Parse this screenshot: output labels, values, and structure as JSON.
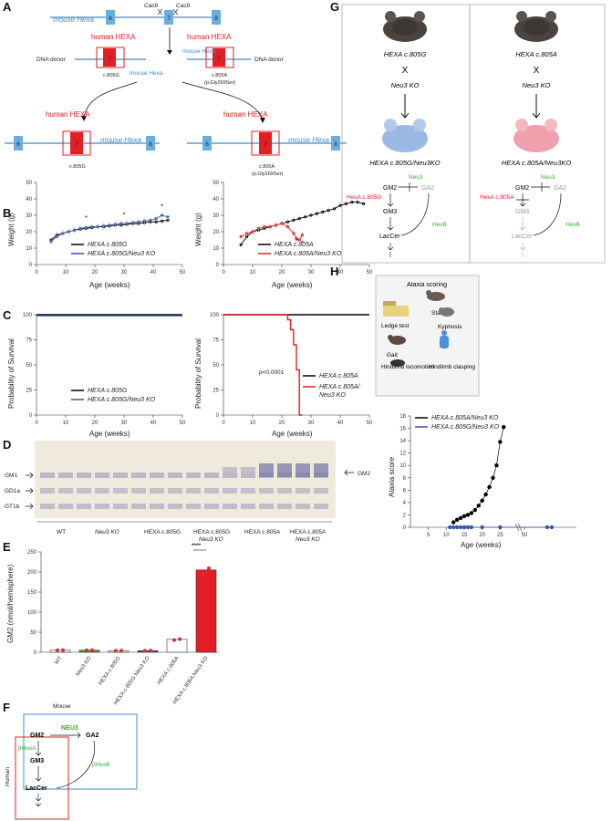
{
  "panels": {
    "A": "A",
    "B": "B",
    "C": "C",
    "D": "D",
    "E": "E",
    "F": "F",
    "G": "G",
    "H": "H"
  },
  "panelA": {
    "mouse_hexa_top": "mouse Hexa",
    "cas9_left": "Cas9",
    "cas9_right": "Cas9",
    "exon6": "6",
    "exon7": "7",
    "exon8": "8",
    "human_hexa": "human HEXA",
    "dna_donor": "DNA donor",
    "mouse_hexa_small": "mouse Hexa",
    "c805g": "c.805G",
    "c805a": "c.805A",
    "pgly": "(p.Gly269Ser)"
  },
  "panelB": {
    "ylabel": "Weight (g)",
    "xlabel": "Age (weeks)",
    "legend_left": [
      "HEXA c.805G",
      "HEXA c.805G/Neu3 KO"
    ],
    "legend_right": [
      "HEXA c.805A",
      "HEXA c.805A/Neu3 KO"
    ],
    "yticks": [
      "0",
      "10",
      "20",
      "30",
      "40",
      "50"
    ],
    "xticks": [
      "0",
      "10",
      "20",
      "30",
      "40",
      "50"
    ],
    "star": "*"
  },
  "panelC": {
    "ylabel": "Probability of Survival",
    "xlabel": "Age (weeks)",
    "yticks": [
      "0",
      "25",
      "50",
      "75",
      "100"
    ],
    "xticks": [
      "0",
      "10",
      "20",
      "30",
      "40",
      "50"
    ],
    "pvalue": "p<0.0001",
    "legend_left": [
      "HEXA c.805G",
      "HEXA c.805G/Neu3 KO"
    ],
    "legend_right": [
      "HEXA c.805A",
      "HEXA c.805A/",
      "Neu3 KO"
    ]
  },
  "panelD": {
    "bands_left": [
      "GM1",
      "GD1a",
      "GT1b"
    ],
    "band_right": "GM2",
    "lanes": [
      "WT",
      "Neu3 KO",
      "HEXA c.805G",
      "HEXA c.805G",
      "Neu3 KO",
      "HEXA c.805A",
      "HEXA c.805A",
      "Neu3 KO"
    ]
  },
  "panelE": {
    "ylabel": "GM2 (nmol/hemisphere)",
    "yticks": [
      "0",
      "50",
      "100",
      "150",
      "200",
      "250"
    ],
    "sig": "****",
    "categories": [
      "WT",
      "Neu3 KO",
      "HEXA c.805G",
      "HEXA c.805G Neu3 KO",
      "HEXA c.805A",
      "HEXA c.805A Neu3 KO"
    ]
  },
  "panelF": {
    "mouse": "Mouse",
    "human": "Human",
    "gm2": "GM2",
    "gm3": "GM3",
    "laccer": "LacCer",
    "ga2": "GA2",
    "neu3": "NEU3",
    "bhexa": "βHexA",
    "bhexb": "βHexB"
  },
  "panelG": {
    "left_top": "HEXA c.805G",
    "right_top": "HEXA c.805A",
    "cross": "X",
    "neu3ko": "Neu3 KO",
    "left_result": "HEXA c.805G/Neu3KO",
    "right_result": "HEXA c.805A/Neu3KO",
    "gm2": "GM2",
    "gm3": "GM3",
    "laccer": "LacCer",
    "ga2": "GA2",
    "neu3": "Neu3",
    "hexb": "HexB",
    "hexa_g": "HexA c.805G",
    "hexa_a": "HexA c.805A"
  },
  "panelH": {
    "title": "Ataxia scoring",
    "items": [
      "Stance",
      "Ledge test",
      "Kyphosis",
      "Gait",
      "Hindlimb locomotion",
      "Hindlimb clasping"
    ],
    "ylabel": "Ataxia score",
    "xlabel": "Age (weeks)",
    "legend": [
      "HEXA c.805A/Neu3 KO",
      "HEXA c.805G/Neu3 KO"
    ],
    "yticks": [
      "0",
      "2",
      "4",
      "6",
      "8",
      "10",
      "12",
      "14",
      "16",
      "18"
    ],
    "xticks": [
      "5",
      "10",
      "15",
      "20",
      "25",
      "50"
    ]
  },
  "chart_data": [
    {
      "type": "line",
      "title": "",
      "xlabel": "Age (weeks)",
      "ylabel": "Weight (g)",
      "xlim": [
        0,
        50
      ],
      "ylim": [
        0,
        50
      ],
      "series": [
        {
          "name": "HEXA c.805G",
          "color": "#000000",
          "x": [
            5,
            7,
            9,
            11,
            13,
            15,
            17,
            19,
            21,
            23,
            25,
            27,
            29,
            31,
            33,
            35,
            37,
            39,
            41,
            43,
            45
          ],
          "y": [
            15,
            18,
            19,
            20,
            21,
            21.5,
            22,
            22.5,
            23,
            23,
            23.5,
            24,
            24,
            24.5,
            25,
            25,
            25.5,
            26,
            26,
            26.5,
            27
          ]
        },
        {
          "name": "HEXA c.805G/Neu3 KO",
          "color": "#3955a3",
          "x": [
            5,
            7,
            9,
            11,
            13,
            15,
            17,
            19,
            21,
            23,
            25,
            27,
            29,
            31,
            33,
            35,
            37,
            39,
            41,
            43,
            45
          ],
          "y": [
            14,
            17,
            19,
            20,
            21,
            22,
            22.5,
            23,
            23,
            23.5,
            24,
            24.5,
            25,
            25,
            25.5,
            26,
            26.5,
            27,
            28,
            30,
            29
          ]
        }
      ]
    },
    {
      "type": "line",
      "title": "",
      "xlabel": "Age (weeks)",
      "ylabel": "Weight (g)",
      "xlim": [
        0,
        50
      ],
      "ylim": [
        0,
        50
      ],
      "series": [
        {
          "name": "HEXA c.805A",
          "color": "#000000",
          "x": [
            6,
            8,
            10,
            12,
            14,
            16,
            18,
            20,
            22,
            24,
            26,
            28,
            30,
            32,
            34,
            36,
            38,
            40,
            42,
            44,
            46,
            48
          ],
          "y": [
            12,
            17,
            20,
            21,
            22,
            23,
            24,
            25,
            26,
            27,
            28,
            29,
            30,
            31,
            32,
            33,
            34,
            36,
            37,
            38,
            38,
            37
          ]
        },
        {
          "name": "HEXA c.805A/Neu3 KO",
          "color": "#e31e24",
          "x": [
            6,
            8,
            10,
            12,
            14,
            16,
            18,
            20,
            22,
            24,
            25,
            26,
            27
          ],
          "y": [
            17,
            19,
            20,
            22,
            23,
            23,
            24,
            25,
            23,
            19,
            16,
            15,
            18
          ]
        }
      ]
    },
    {
      "type": "line",
      "title": "",
      "xlabel": "Age (weeks)",
      "ylabel": "Probability of Survival",
      "xlim": [
        0,
        50
      ],
      "ylim": [
        0,
        100
      ],
      "series": [
        {
          "name": "HEXA c.805G",
          "color": "#000000",
          "x": [
            0,
            50
          ],
          "y": [
            100,
            100
          ]
        },
        {
          "name": "HEXA c.805G/Neu3 KO",
          "color": "#3955a3",
          "x": [
            0,
            50
          ],
          "y": [
            99,
            99
          ]
        }
      ]
    },
    {
      "type": "line",
      "title": "",
      "xlabel": "Age (weeks)",
      "ylabel": "Probability of Survival",
      "xlim": [
        0,
        50
      ],
      "ylim": [
        0,
        100
      ],
      "series": [
        {
          "name": "HEXA c.805A",
          "color": "#000000",
          "x": [
            0,
            50
          ],
          "y": [
            100,
            100
          ]
        },
        {
          "name": "HEXA c.805A/Neu3 KO",
          "color": "#e31e24",
          "x": [
            0,
            22,
            22,
            23,
            23,
            24,
            24,
            25,
            25,
            26,
            26,
            27
          ],
          "y": [
            100,
            100,
            95,
            95,
            85,
            85,
            70,
            70,
            45,
            45,
            0,
            0
          ]
        }
      ]
    },
    {
      "type": "bar",
      "title": "",
      "ylabel": "GM2 (nmol/hemisphere)",
      "ylim": [
        0,
        250
      ],
      "categories": [
        "WT",
        "Neu3 KO",
        "HEXA c.805G",
        "HEXA c.805G Neu3 KO",
        "HEXA c.805A",
        "HEXA c.805A Neu3 KO"
      ],
      "values": [
        5,
        5,
        4,
        4,
        32,
        205
      ],
      "colors": [
        "#ffffff",
        "#3aaa35",
        "#ffffff",
        "#3955a3",
        "#ffffff",
        "#e31e24"
      ]
    },
    {
      "type": "line",
      "title": "",
      "xlabel": "Age (weeks)",
      "ylabel": "Ataxia score",
      "ylim": [
        0,
        18
      ],
      "series": [
        {
          "name": "HEXA c.805A/Neu3 KO",
          "color": "#000000",
          "x": [
            12,
            13,
            14,
            15,
            16,
            17,
            18,
            19,
            20,
            21,
            22,
            23,
            24,
            25,
            26
          ],
          "y": [
            0.8,
            1.2,
            1.5,
            1.8,
            2.0,
            2.3,
            2.8,
            3.5,
            4.3,
            5.3,
            6.5,
            8.0,
            10.0,
            13.8,
            16.2
          ]
        },
        {
          "name": "HEXA c.805G/Neu3 KO",
          "color": "#3955a3",
          "x": [
            11,
            12,
            13,
            14,
            15,
            16,
            17,
            20,
            25,
            55,
            56
          ],
          "y": [
            0,
            0,
            0,
            0,
            0,
            0,
            0,
            0,
            0,
            0,
            0
          ]
        }
      ]
    }
  ]
}
